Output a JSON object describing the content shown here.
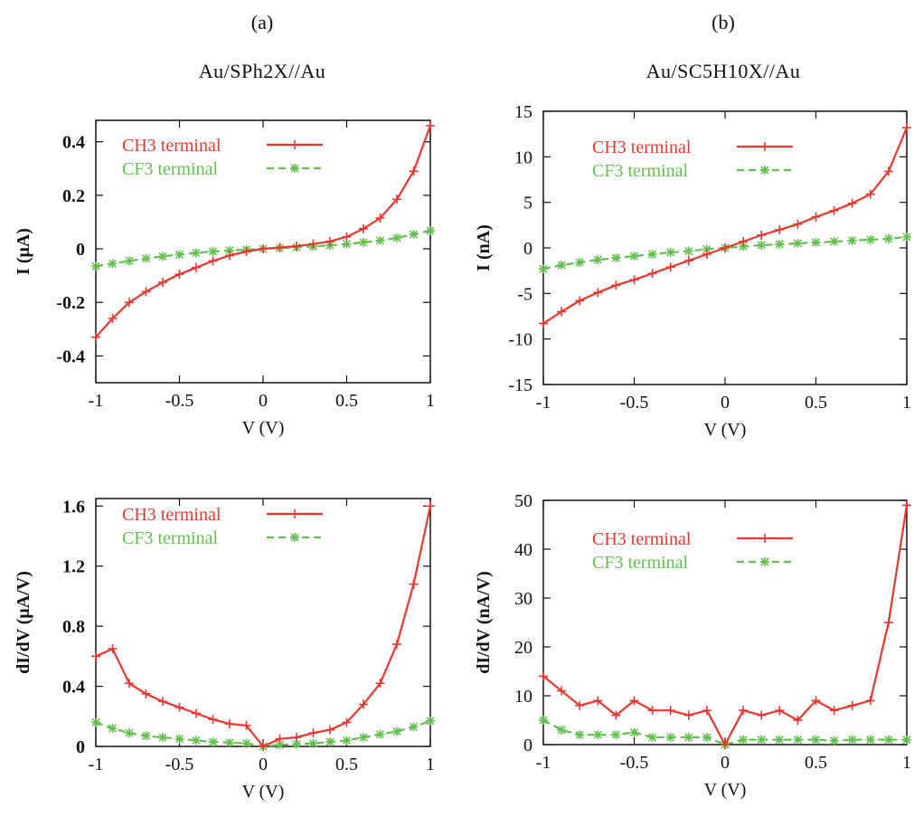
{
  "panel_labels": [
    "(a)",
    "(b)"
  ],
  "panel_titles": [
    "Au/SPh2X//Au",
    "Au/SC5H10X//Au"
  ],
  "colors": {
    "ch3": "#e8372f",
    "cf3": "#62c04e",
    "axis": "#111111"
  },
  "chart_data": [
    {
      "type": "line",
      "title": "Au/SPh2X//Au",
      "xlabel": "V (V)",
      "ylabel": "I (μA)",
      "xlim": [
        -1,
        1
      ],
      "ylim": [
        -0.5,
        0.48
      ],
      "xticks": [
        -1,
        -0.5,
        0,
        0.5,
        1
      ],
      "xtick_labels": [
        "-1",
        "-0.5",
        "0",
        "0.5",
        "1"
      ],
      "yticks": [
        -0.4,
        -0.2,
        0,
        0.2,
        0.4
      ],
      "ytick_labels": [
        "-0.4",
        "-0.2",
        "0",
        "0.2",
        "0.4"
      ],
      "legend_position": "top-left",
      "x": [
        -1,
        -0.9,
        -0.8,
        -0.7,
        -0.6,
        -0.5,
        -0.4,
        -0.3,
        -0.2,
        -0.1,
        0,
        0.1,
        0.2,
        0.3,
        0.4,
        0.5,
        0.6,
        0.7,
        0.8,
        0.9,
        1
      ],
      "series": [
        {
          "name": "CH3 terminal",
          "color": "#e8372f",
          "marker": "plus",
          "dash": "solid",
          "values": [
            -0.33,
            -0.26,
            -0.2,
            -0.16,
            -0.125,
            -0.095,
            -0.07,
            -0.045,
            -0.025,
            -0.01,
            0.0,
            0.005,
            0.01,
            0.018,
            0.028,
            0.045,
            0.075,
            0.115,
            0.185,
            0.29,
            0.46
          ]
        },
        {
          "name": "CF3 terminal",
          "color": "#62c04e",
          "marker": "star",
          "dash": "dashed",
          "values": [
            -0.065,
            -0.055,
            -0.045,
            -0.036,
            -0.028,
            -0.021,
            -0.015,
            -0.01,
            -0.006,
            -0.003,
            0.0,
            0.003,
            0.006,
            0.009,
            0.013,
            0.018,
            0.024,
            0.031,
            0.041,
            0.054,
            0.068
          ]
        }
      ]
    },
    {
      "type": "line",
      "title": "Au/SC5H10X//Au",
      "xlabel": "V (V)",
      "ylabel": "I (nA)",
      "xlim": [
        -1,
        1
      ],
      "ylim": [
        -15,
        15
      ],
      "xticks": [
        -1,
        -0.5,
        0,
        0.5,
        1
      ],
      "xtick_labels": [
        "-1",
        "-0.5",
        "0",
        "0.5",
        "1"
      ],
      "yticks": [
        -15,
        -10,
        -5,
        0,
        5,
        10,
        15
      ],
      "ytick_labels": [
        "-15",
        "-10",
        "-5",
        "0",
        "5",
        "10",
        "15"
      ],
      "legend_position": "top-left",
      "x": [
        -1,
        -0.9,
        -0.8,
        -0.7,
        -0.6,
        -0.5,
        -0.4,
        -0.3,
        -0.2,
        -0.1,
        0,
        0.1,
        0.2,
        0.3,
        0.4,
        0.5,
        0.6,
        0.7,
        0.8,
        0.9,
        1
      ],
      "series": [
        {
          "name": "CH3 terminal",
          "color": "#e8372f",
          "marker": "plus",
          "dash": "solid",
          "values": [
            -8.3,
            -7.0,
            -5.8,
            -4.9,
            -4.1,
            -3.5,
            -2.8,
            -2.1,
            -1.4,
            -0.7,
            0.0,
            0.7,
            1.4,
            2.0,
            2.6,
            3.4,
            4.1,
            4.9,
            5.9,
            8.4,
            13.2
          ]
        },
        {
          "name": "CF3 terminal",
          "color": "#62c04e",
          "marker": "star",
          "dash": "dashed",
          "values": [
            -2.3,
            -1.9,
            -1.6,
            -1.3,
            -1.1,
            -0.9,
            -0.7,
            -0.5,
            -0.35,
            -0.15,
            0.0,
            0.15,
            0.3,
            0.4,
            0.5,
            0.6,
            0.7,
            0.8,
            0.9,
            1.0,
            1.2
          ]
        }
      ]
    },
    {
      "type": "line",
      "title": "",
      "xlabel": "V (V)",
      "ylabel": "dI/dV (μA/V)",
      "xlim": [
        -1,
        1
      ],
      "ylim": [
        0,
        1.65
      ],
      "xticks": [
        -1,
        -0.5,
        0,
        0.5,
        1
      ],
      "xtick_labels": [
        "-1",
        "-0.5",
        "0",
        "0.5",
        "1"
      ],
      "yticks": [
        0,
        0.4,
        0.8,
        1.2,
        1.6
      ],
      "ytick_labels": [
        "0",
        "0.4",
        "0.8",
        "1.2",
        "1.6"
      ],
      "legend_position": "top-left",
      "x": [
        -1,
        -0.9,
        -0.8,
        -0.7,
        -0.6,
        -0.5,
        -0.4,
        -0.3,
        -0.2,
        -0.1,
        0,
        0.1,
        0.2,
        0.3,
        0.4,
        0.5,
        0.6,
        0.7,
        0.8,
        0.9,
        1
      ],
      "series": [
        {
          "name": "CH3 terminal",
          "color": "#e8372f",
          "marker": "plus",
          "dash": "solid",
          "values": [
            0.6,
            0.65,
            0.42,
            0.35,
            0.3,
            0.26,
            0.22,
            0.18,
            0.15,
            0.14,
            0.0,
            0.05,
            0.06,
            0.09,
            0.11,
            0.16,
            0.28,
            0.42,
            0.68,
            1.08,
            1.6
          ]
        },
        {
          "name": "CF3 terminal",
          "color": "#62c04e",
          "marker": "star",
          "dash": "dashed",
          "values": [
            0.16,
            0.12,
            0.09,
            0.07,
            0.06,
            0.05,
            0.04,
            0.03,
            0.025,
            0.02,
            0.0,
            0.01,
            0.015,
            0.02,
            0.03,
            0.04,
            0.06,
            0.08,
            0.1,
            0.13,
            0.17
          ]
        }
      ]
    },
    {
      "type": "line",
      "title": "",
      "xlabel": "V (V)",
      "ylabel": "dI/dV (nA/V)",
      "xlim": [
        -1,
        1
      ],
      "ylim": [
        0,
        50
      ],
      "xticks": [
        -1,
        -0.5,
        0,
        0.5,
        1
      ],
      "xtick_labels": [
        "-1",
        "-0.5",
        "0",
        "0.5",
        "1"
      ],
      "yticks": [
        0,
        10,
        20,
        30,
        40,
        50
      ],
      "ytick_labels": [
        "0",
        "10",
        "20",
        "30",
        "40",
        "50"
      ],
      "legend_position": "top-left",
      "x": [
        -1,
        -0.9,
        -0.8,
        -0.7,
        -0.6,
        -0.5,
        -0.4,
        -0.3,
        -0.2,
        -0.1,
        0,
        0.1,
        0.2,
        0.3,
        0.4,
        0.5,
        0.6,
        0.7,
        0.8,
        0.9,
        1
      ],
      "series": [
        {
          "name": "CH3 terminal",
          "color": "#e8372f",
          "marker": "plus",
          "dash": "solid",
          "values": [
            14,
            11,
            8,
            9,
            6,
            9,
            7,
            7,
            6,
            7,
            0,
            7,
            6,
            7,
            5,
            9,
            7,
            8,
            9,
            25,
            49
          ]
        },
        {
          "name": "CF3 terminal",
          "color": "#62c04e",
          "marker": "star",
          "dash": "dashed",
          "values": [
            5,
            3,
            2,
            2,
            2,
            2.5,
            1.5,
            1.5,
            1.5,
            1.5,
            0,
            1,
            1,
            1,
            1,
            1,
            0.8,
            1,
            1,
            1,
            1
          ]
        }
      ]
    }
  ]
}
